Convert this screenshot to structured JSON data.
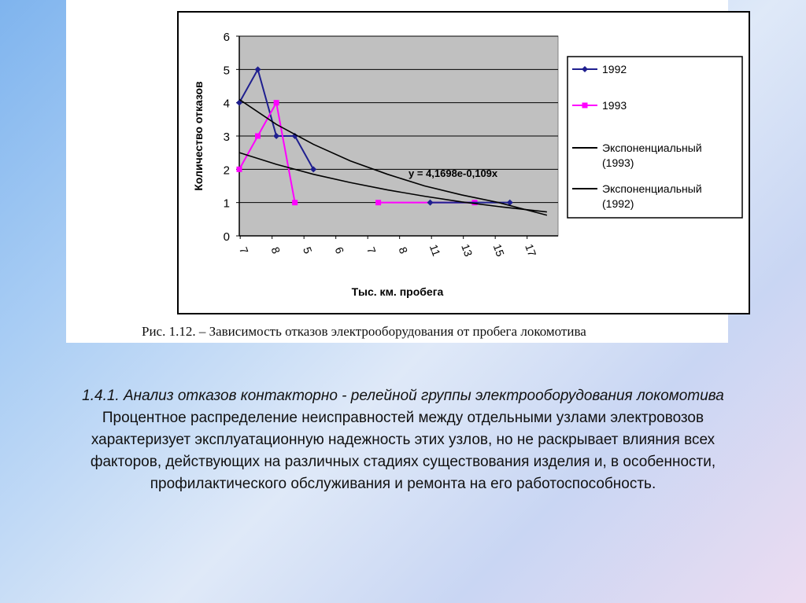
{
  "chart_data": {
    "type": "line",
    "ylabel": "Количество отказов",
    "xlabel": "Тыс. км. пробега",
    "y_ticks": [
      "0",
      "1",
      "2",
      "3",
      "4",
      "5",
      "6"
    ],
    "ylim": [
      0,
      6
    ],
    "x_ticks": [
      "7",
      "8",
      "5",
      "6",
      "7",
      "8",
      "11",
      "13",
      "15",
      "17"
    ],
    "grid": true,
    "legend_position": "right",
    "series": [
      {
        "name": "1992",
        "color": "#1f1f8f",
        "marker": "diamond",
        "x": [
          0,
          1,
          2,
          3,
          4
        ],
        "y": [
          4,
          5,
          3,
          3,
          2
        ]
      },
      {
        "name": "1993",
        "color": "#ff00ff",
        "marker": "square",
        "x": [
          0,
          1,
          2,
          3
        ],
        "y": [
          2,
          3,
          4,
          1
        ]
      },
      {
        "name": "1993",
        "color": "#ff00ff",
        "marker": "square",
        "x": [
          7.5,
          12.7
        ],
        "y": [
          1,
          1
        ]
      },
      {
        "name": "1992",
        "color": "#1f1f8f",
        "marker": "diamond",
        "x": [
          10.3,
          14.6
        ],
        "y": [
          1,
          1
        ]
      },
      {
        "name": "Экспоненциальный (1993)",
        "color": "#000000",
        "trend": true,
        "x": [
          0,
          2,
          4,
          6,
          8,
          10,
          12,
          14,
          16.6
        ],
        "y": [
          2.5,
          2.15,
          1.85,
          1.6,
          1.38,
          1.19,
          1.02,
          0.88,
          0.72
        ]
      },
      {
        "name": "Экспоненциальный (1992)",
        "color": "#000000",
        "trend": true,
        "x": [
          0,
          2,
          4,
          6,
          8,
          10,
          12,
          14,
          16.6
        ],
        "y": [
          4.1,
          3.35,
          2.75,
          2.25,
          1.85,
          1.5,
          1.23,
          1.0,
          0.62
        ]
      }
    ],
    "equation": "y = 4,1698e-0,109x"
  },
  "legend": [
    {
      "label": "1992",
      "type": "line-marker",
      "color": "#1f1f8f"
    },
    {
      "label": "1993",
      "type": "line-marker",
      "color": "#ff00ff"
    },
    {
      "label": "Экспоненциальный (1993)",
      "type": "line",
      "color": "#000000"
    },
    {
      "label": "Экспоненциальный (1992)",
      "type": "line",
      "color": "#000000"
    }
  ],
  "caption": "Рис. 1.12. – Зависимость отказов электрооборудования от пробега локомотива",
  "heading": "1.4.1. Анализ отказов контакторно - релейной группы электрооборудования локомотива",
  "paragraph": "Процентное распределение неисправностей между отдельными узлами электровозов характеризует эксплуатационную надежность этих узлов, но не раскрывает влияния всех факторов, действующих на различных стадиях существования изделия и, в особенности, профилактического обслуживания и ремонта на его работоспособность."
}
